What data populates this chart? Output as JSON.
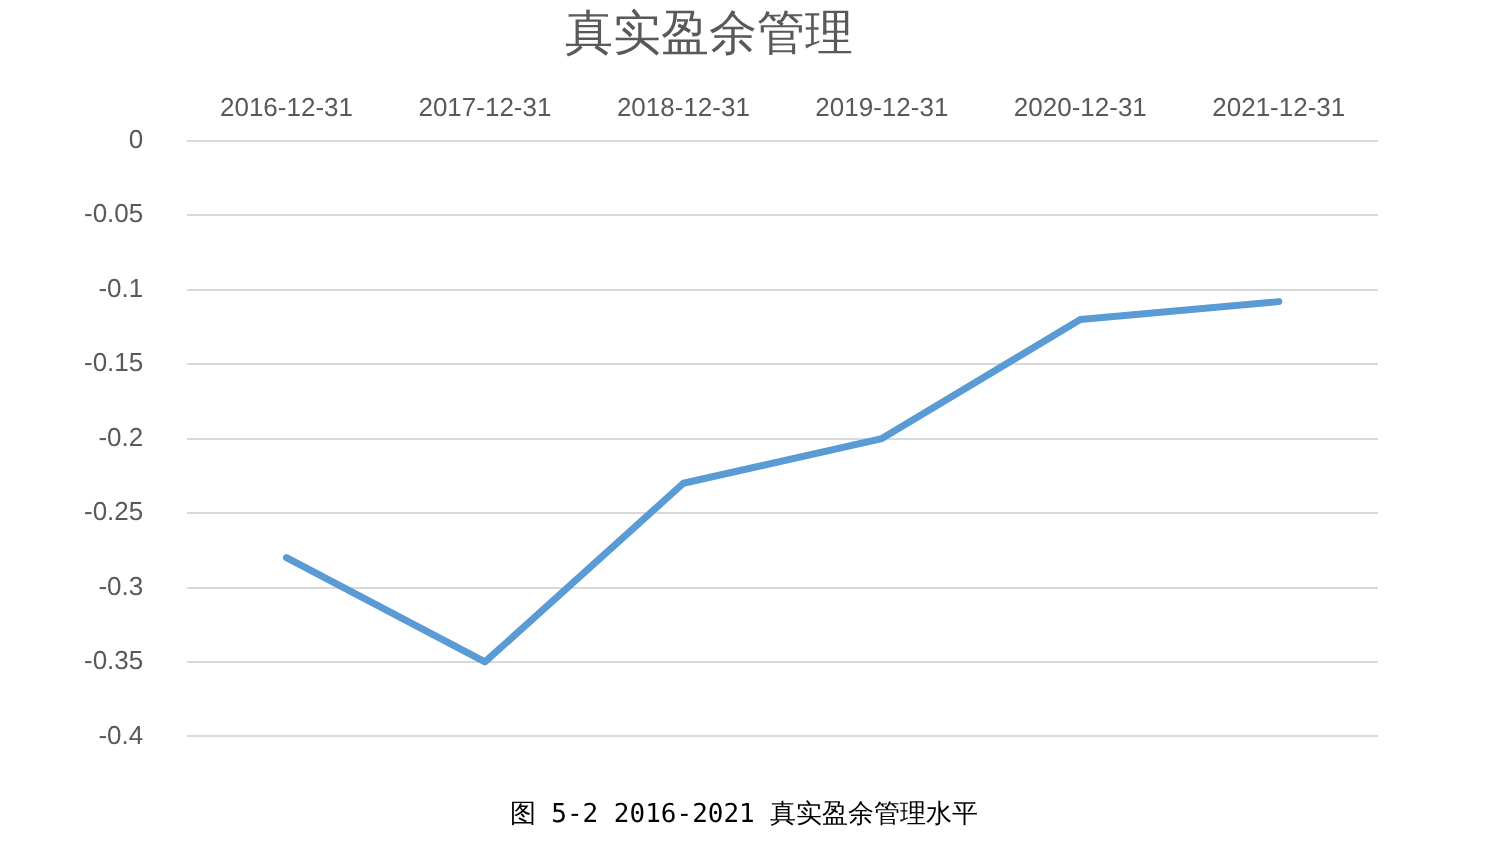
{
  "chart_data": {
    "type": "line",
    "title": "真实盈余管理",
    "categories": [
      "2016-12-31",
      "2017-12-31",
      "2018-12-31",
      "2019-12-31",
      "2020-12-31",
      "2021-12-31"
    ],
    "series": [
      {
        "color": "#5b9bd5",
        "values": [
          -0.28,
          -0.35,
          -0.23,
          -0.2,
          -0.12,
          -0.108
        ]
      }
    ],
    "ylim": [
      -0.4,
      0
    ],
    "yticks": [
      0,
      -0.05,
      -0.1,
      -0.15,
      -0.2,
      -0.25,
      -0.3,
      -0.35,
      -0.4
    ],
    "grid": "y",
    "legend": false,
    "marker": "none",
    "line_style": "solid",
    "annotations": [
      "图 5-2 2016-2021 真实盈余管理水平"
    ]
  }
}
